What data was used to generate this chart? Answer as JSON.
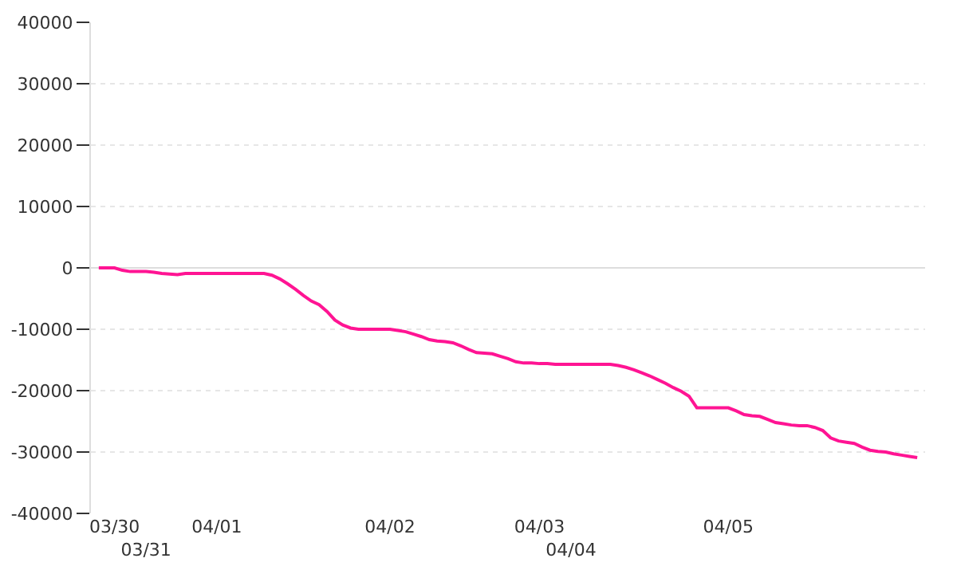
{
  "chart_data": {
    "type": "line",
    "categories": [
      null,
      null,
      "03/30",
      null,
      null,
      null,
      "03/31",
      null,
      null,
      null,
      null,
      null,
      null,
      null,
      null,
      "04/01",
      null,
      null,
      null,
      null,
      null,
      null,
      null,
      null,
      null,
      null,
      null,
      null,
      null,
      null,
      null,
      null,
      null,
      null,
      null,
      null,
      null,
      "04/02",
      null,
      null,
      null,
      null,
      null,
      null,
      null,
      null,
      null,
      null,
      null,
      null,
      null,
      null,
      null,
      null,
      null,
      null,
      "04/03",
      null,
      null,
      null,
      "04/04",
      null,
      null,
      null,
      null,
      null,
      null,
      null,
      null,
      null,
      null,
      null,
      null,
      null,
      null,
      null,
      null,
      null,
      null,
      null,
      "04/05",
      null,
      null,
      null,
      null,
      null,
      null,
      null,
      null,
      null,
      null,
      null,
      null,
      null,
      null,
      null,
      null,
      null,
      null,
      null,
      null,
      null,
      null,
      null,
      null
    ],
    "series": [
      {
        "color": "#ff1493",
        "values": [
          0,
          0,
          0,
          -400,
          -600,
          -600,
          -600,
          -700,
          -900,
          -1000,
          -1100,
          -900,
          -900,
          -900,
          -900,
          -900,
          -900,
          -900,
          -900,
          -900,
          -900,
          -900,
          -1200,
          -1800,
          -2600,
          -3500,
          -4500,
          -5400,
          -6000,
          -7100,
          -8500,
          -9300,
          -9800,
          -10000,
          -10000,
          -10000,
          -10000,
          -10000,
          -10200,
          -10400,
          -10800,
          -11200,
          -11700,
          -11900,
          -12000,
          -12200,
          -12700,
          -13300,
          -13800,
          -13900,
          -14000,
          -14400,
          -14800,
          -15300,
          -15500,
          -15500,
          -15600,
          -15600,
          -15700,
          -15700,
          -15700,
          -15700,
          -15700,
          -15700,
          -15700,
          -15700,
          -15900,
          -16200,
          -16600,
          -17100,
          -17600,
          -18200,
          -18800,
          -19500,
          -20100,
          -20900,
          -22800,
          -22800,
          -22800,
          -22800,
          -22800,
          -23300,
          -23900,
          -24100,
          -24200,
          -24700,
          -25200,
          -25400,
          -25600,
          -25700,
          -25700,
          -26000,
          -26500,
          -27700,
          -28200,
          -28400,
          -28600,
          -29200,
          -29700,
          -29900,
          -30000,
          -30300,
          -30500,
          -30700,
          -30900
        ]
      }
    ],
    "ylim": [
      -40000,
      40000
    ],
    "yticks": [
      -40000,
      -30000,
      -20000,
      -10000,
      0,
      10000,
      20000,
      30000,
      40000
    ],
    "grid": "y",
    "marker": "none",
    "line_style": "solid"
  }
}
